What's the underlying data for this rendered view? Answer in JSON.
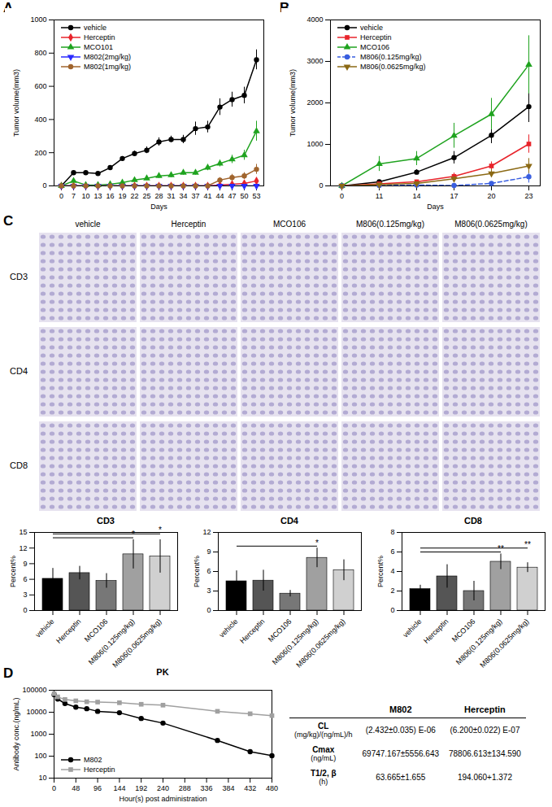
{
  "panel_labels": [
    "A",
    "B",
    "C",
    "D"
  ],
  "chart_data": [
    {
      "type": "line",
      "x_label": "Days",
      "y_label": "Tumor volume(mm3)",
      "categories": [
        0,
        7,
        10,
        13,
        16,
        19,
        22,
        25,
        28,
        31,
        34,
        37,
        41,
        44,
        47,
        50,
        53
      ],
      "ylim": [
        0,
        1000
      ],
      "yticks": [
        0,
        200,
        400,
        600,
        800,
        1000
      ],
      "legend": "top-left",
      "series": [
        {
          "name": "vehicle",
          "color": "#000000",
          "marker": "circle",
          "line_style": "solid",
          "values": [
            0,
            80,
            80,
            75,
            110,
            165,
            195,
            215,
            265,
            280,
            280,
            345,
            355,
            475,
            520,
            545,
            760
          ],
          "errors": [
            0,
            10,
            10,
            8,
            10,
            12,
            15,
            20,
            25,
            20,
            25,
            40,
            35,
            50,
            45,
            50,
            60
          ]
        },
        {
          "name": "Herceptin",
          "color": "#e8242b",
          "marker": "diamond",
          "line_style": "solid",
          "values": [
            0,
            0,
            0,
            0,
            0,
            0,
            0,
            0,
            0,
            0,
            0,
            0,
            0,
            5,
            10,
            15,
            30
          ],
          "errors": [
            0,
            0,
            0,
            0,
            0,
            0,
            0,
            0,
            0,
            0,
            0,
            0,
            0,
            3,
            5,
            5,
            15
          ]
        },
        {
          "name": "MCO101",
          "color": "#1fa31f",
          "marker": "triangle",
          "line_style": "solid",
          "values": [
            0,
            30,
            5,
            5,
            10,
            20,
            35,
            45,
            60,
            65,
            80,
            80,
            110,
            135,
            160,
            185,
            330
          ],
          "errors": [
            0,
            10,
            5,
            5,
            5,
            8,
            10,
            12,
            15,
            15,
            15,
            15,
            18,
            20,
            25,
            30,
            60
          ]
        },
        {
          "name": "M802(2mg/kg)",
          "color": "#2b2bff",
          "marker": "triangle-down",
          "line_style": "solid",
          "values": [
            0,
            0,
            0,
            0,
            0,
            0,
            0,
            0,
            0,
            0,
            0,
            0,
            0,
            0,
            0,
            0,
            0
          ]
        },
        {
          "name": "M802(1mg/kg)",
          "color": "#a0642d",
          "marker": "circle",
          "line_style": "solid",
          "values": [
            0,
            0,
            0,
            0,
            0,
            0,
            0,
            0,
            0,
            0,
            0,
            0,
            0,
            35,
            50,
            60,
            100
          ],
          "errors": [
            0,
            0,
            0,
            0,
            0,
            0,
            0,
            0,
            0,
            0,
            0,
            0,
            0,
            15,
            20,
            20,
            30
          ]
        }
      ]
    },
    {
      "type": "line",
      "x_label": "Days",
      "y_label": "Tumor volume(mm3)",
      "categories": [
        0,
        11,
        14,
        17,
        20,
        23
      ],
      "ylim": [
        0,
        4000
      ],
      "yticks": [
        0,
        1000,
        2000,
        3000,
        4000
      ],
      "legend": "top-left",
      "series": [
        {
          "name": "vehicle",
          "color": "#000000",
          "marker": "circle",
          "line_style": "solid",
          "values": [
            0,
            100,
            330,
            680,
            1220,
            1910
          ],
          "errors": [
            0,
            30,
            60,
            150,
            200,
            380
          ]
        },
        {
          "name": "Herceptin",
          "color": "#e8242b",
          "marker": "square",
          "line_style": "solid",
          "values": [
            0,
            50,
            100,
            230,
            480,
            1010
          ],
          "errors": [
            0,
            20,
            40,
            80,
            100,
            220
          ]
        },
        {
          "name": "MCO106",
          "color": "#1fa31f",
          "marker": "triangle",
          "line_style": "solid",
          "values": [
            0,
            530,
            660,
            1210,
            1730,
            2920
          ],
          "errors": [
            0,
            180,
            170,
            300,
            380,
            700
          ]
        },
        {
          "name": "M806(0.125mg/kg)",
          "color": "#3a5fe0",
          "marker": "circle",
          "line_style": "dashed",
          "values": [
            0,
            10,
            20,
            10,
            60,
            220
          ],
          "errors": [
            0,
            5,
            10,
            10,
            40,
            150
          ]
        },
        {
          "name": "M806(0.0625mg/kg)",
          "color": "#8b6914",
          "marker": "triangle-down",
          "line_style": "solid",
          "values": [
            0,
            30,
            60,
            170,
            300,
            480
          ],
          "errors": [
            0,
            10,
            20,
            60,
            100,
            180
          ]
        }
      ]
    },
    {
      "type": "bar",
      "title": "CD3",
      "y_label": "Percent%",
      "categories": [
        "vehicle",
        "Herceptin",
        "MCO106",
        "M806(0.125mg/kg)",
        "M806(0.0625mg/kg)"
      ],
      "values": [
        6.1,
        7.2,
        5.7,
        10.8,
        10.4
      ],
      "errors": [
        2.0,
        1.3,
        1.4,
        2.8,
        3.2
      ],
      "colors": [
        "#000000",
        "#555555",
        "#777777",
        "#a0a0a0",
        "#d0d0d0"
      ],
      "ylim": [
        0,
        15
      ],
      "yticks": [
        0,
        3,
        6,
        9,
        12,
        15
      ],
      "significance": [
        {
          "from": "vehicle",
          "to": "M806(0.125mg/kg)",
          "label": "*"
        },
        {
          "from": "vehicle",
          "to": "M806(0.0625mg/kg)",
          "label": "*"
        }
      ]
    },
    {
      "type": "bar",
      "title": "CD4",
      "y_label": "Percent%",
      "categories": [
        "vehicle",
        "Herceptin",
        "MCO106",
        "M806(0.125mg/kg)",
        "M806(0.0625mg/kg)"
      ],
      "values": [
        4.5,
        4.6,
        2.6,
        8.1,
        6.2
      ],
      "errors": [
        1.6,
        1.6,
        0.5,
        1.5,
        1.6
      ],
      "colors": [
        "#000000",
        "#555555",
        "#777777",
        "#a0a0a0",
        "#d0d0d0"
      ],
      "ylim": [
        0,
        12
      ],
      "yticks": [
        0,
        3,
        6,
        9,
        12
      ],
      "significance": [
        {
          "from": "vehicle",
          "to": "M806(0.125mg/kg)",
          "label": "*"
        }
      ]
    },
    {
      "type": "bar",
      "title": "CD8",
      "y_label": "Percent%",
      "categories": [
        "vehicle",
        "Herceptin",
        "MCO106",
        "M806(0.125mg/kg)",
        "M806(0.0625mg/kg)"
      ],
      "values": [
        2.2,
        3.5,
        2.0,
        5.0,
        4.4
      ],
      "errors": [
        0.4,
        1.2,
        1.0,
        0.8,
        0.5
      ],
      "colors": [
        "#000000",
        "#555555",
        "#777777",
        "#a0a0a0",
        "#d0d0d0"
      ],
      "ylim": [
        0,
        8
      ],
      "yticks": [
        0,
        2,
        4,
        6,
        8
      ],
      "significance": [
        {
          "from": "vehicle",
          "to": "M806(0.125mg/kg)",
          "label": "**"
        },
        {
          "from": "vehicle",
          "to": "M806(0.0625mg/kg)",
          "label": "**"
        }
      ]
    },
    {
      "type": "line",
      "title": "PK",
      "x_label": "Hour(s) post administration",
      "y_label": "Antibody conc.(ng/mL)",
      "log": "y",
      "xlim": [
        0,
        480
      ],
      "xticks": [
        0,
        48,
        96,
        144,
        192,
        240,
        288,
        336,
        384,
        432,
        480
      ],
      "ylim": [
        10,
        100000
      ],
      "yticks": [
        10,
        100,
        1000,
        10000,
        100000
      ],
      "legend": "bottom-left",
      "series": [
        {
          "name": "M802",
          "color": "#000000",
          "marker": "circle",
          "line_style": "solid",
          "x": [
            0.25,
            8,
            24,
            48,
            72,
            96,
            144,
            192,
            240,
            360,
            432,
            480
          ],
          "values": [
            62000,
            40000,
            25000,
            17000,
            14500,
            11000,
            9500,
            5200,
            3200,
            520,
            160,
            105
          ]
        },
        {
          "name": "Herceptin",
          "color": "#a0a0a0",
          "marker": "square",
          "line_style": "solid",
          "x": [
            0.25,
            8,
            24,
            48,
            72,
            96,
            144,
            192,
            240,
            360,
            432,
            480
          ],
          "values": [
            70000,
            50000,
            38000,
            33000,
            30000,
            29000,
            27000,
            23000,
            21000,
            11000,
            8500,
            7000
          ]
        }
      ]
    }
  ],
  "micrographs": {
    "columns": [
      "vehicle",
      "Herceptin",
      "MCO106",
      "M806(0.125mg/kg)",
      "M806(0.0625mg/kg)"
    ],
    "rows": [
      "CD3",
      "CD4",
      "CD8"
    ]
  },
  "pk_table": {
    "columns": [
      "M802",
      "Herceptin"
    ],
    "rows": [
      {
        "label": "CL",
        "unit": "(mg/kg)/(ng/mL)/h",
        "values": [
          "(2.432±0.035) E-06",
          "(6.200±0.022) E-07"
        ]
      },
      {
        "label": "Cmax",
        "unit": "(ng/mL)",
        "values": [
          "69747.167±5556.643",
          "78806.613±134.590"
        ]
      },
      {
        "label": "T1/2, β",
        "unit": "(h)",
        "values": [
          "63.665±1.655",
          "194.060+1.372"
        ]
      }
    ]
  }
}
